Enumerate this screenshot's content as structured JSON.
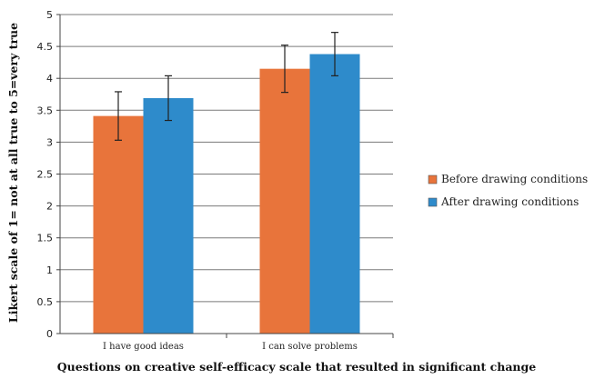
{
  "chart_data": {
    "type": "bar",
    "categories": [
      "I have good ideas",
      "I can solve problems"
    ],
    "series": [
      {
        "name": "Before drawing conditions",
        "color": "#E8743B",
        "values": [
          3.41,
          4.15
        ],
        "error": [
          0.38,
          0.37
        ]
      },
      {
        "name": "After drawing conditions",
        "color": "#2E8BCB",
        "values": [
          3.69,
          4.38
        ],
        "error": [
          0.35,
          0.34
        ]
      }
    ],
    "xlabel": "Questions on creative self-efficacy scale that resulted in significant change",
    "ylabel": "Likert scale of 1= not at all true to 5=very true",
    "ylim": [
      0,
      5
    ],
    "yticks": [
      "0",
      "0.5",
      "1",
      "1.5",
      "2",
      "2.5",
      "3",
      "3.5",
      "4",
      "4.5",
      "5"
    ],
    "grid": true,
    "legend_position": "right"
  }
}
